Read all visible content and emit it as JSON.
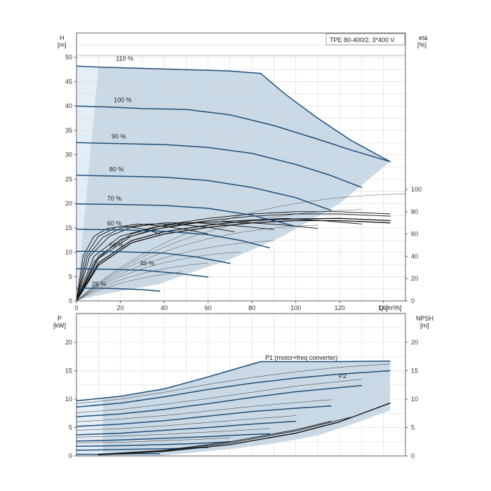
{
  "colors": {
    "curve": "#1f4e79",
    "envelope": "#c9d9e6",
    "envelope_light": "#e4eef7",
    "grid": "#d8d8d8",
    "axis": "#555555",
    "efficiency": "#111111",
    "p2_label": "#2a6aa8"
  },
  "chart_data": [
    {
      "type": "line",
      "title": "TPE 80-400/2, 3*400 V",
      "xlabel": "Q [m³/h]",
      "ylabel_left": [
        "H",
        "[m]"
      ],
      "ylabel_right": [
        "eta",
        "[%]"
      ],
      "xlim": [
        0,
        150
      ],
      "ylim": [
        0,
        55
      ],
      "y2lim": [
        0,
        100
      ],
      "xticks": [
        "0",
        "20",
        "40",
        "60",
        "80",
        "100",
        "120",
        "140"
      ],
      "yticks": [
        "0",
        "5",
        "10",
        "15",
        "20",
        "25",
        "30",
        "35",
        "40",
        "45",
        "50"
      ],
      "y2ticks": [
        "0",
        "20",
        "40",
        "60",
        "80",
        "100"
      ],
      "grid": true,
      "speed_curves": [
        {
          "name": "110 %",
          "x": [
            0,
            10,
            25,
            40,
            55,
            70,
            84,
            95,
            110,
            125,
            143
          ],
          "y": [
            48.2,
            48.0,
            47.8,
            47.6,
            47.4,
            47.2,
            46.7,
            42.5,
            37.5,
            33.0,
            28.6
          ]
        },
        {
          "name": "100 %",
          "x": [
            0,
            15,
            30,
            50,
            70,
            90,
            110,
            125,
            143
          ],
          "y": [
            40.0,
            39.8,
            39.5,
            39.3,
            38.2,
            36.0,
            33.2,
            31.0,
            28.6
          ]
        },
        {
          "name": "90 %",
          "x": [
            0,
            20,
            40,
            60,
            80,
            100,
            115,
            130
          ],
          "y": [
            32.5,
            32.3,
            32.1,
            31.5,
            30.3,
            28.0,
            25.9,
            23.3
          ]
        },
        {
          "name": "80 %",
          "x": [
            0,
            20,
            40,
            60,
            80,
            100,
            116
          ],
          "y": [
            25.8,
            25.6,
            25.4,
            24.7,
            23.3,
            21.2,
            18.6
          ]
        },
        {
          "name": "70 %",
          "x": [
            0,
            20,
            40,
            60,
            80,
            100
          ],
          "y": [
            19.9,
            19.8,
            19.6,
            19.0,
            17.6,
            15.3
          ]
        },
        {
          "name": "60 %",
          "x": [
            0,
            20,
            40,
            60,
            75,
            88
          ],
          "y": [
            14.7,
            14.6,
            14.3,
            13.6,
            12.4,
            10.9
          ]
        },
        {
          "name": "50 %",
          "x": [
            0,
            20,
            40,
            55,
            70
          ],
          "y": [
            10.2,
            10.1,
            9.8,
            9.0,
            7.7
          ]
        },
        {
          "name": "40 %",
          "x": [
            0,
            15,
            30,
            45,
            60
          ],
          "y": [
            6.6,
            6.5,
            6.3,
            5.7,
            4.9
          ]
        },
        {
          "name": "25 %",
          "x": [
            0,
            10,
            20,
            30,
            38
          ],
          "y": [
            2.6,
            2.6,
            2.5,
            2.3,
            2.0
          ]
        }
      ],
      "efficiency_curves": [
        {
          "x": [
            0,
            10,
            25,
            40,
            60,
            80,
            100,
            120,
            143
          ],
          "y": [
            0,
            32,
            52,
            60,
            66,
            70,
            72,
            72,
            70
          ]
        },
        {
          "x": [
            0,
            10,
            25,
            40,
            60,
            80,
            100,
            120,
            143
          ],
          "y": [
            0,
            34,
            54,
            62,
            68,
            72,
            73.5,
            74,
            72
          ]
        },
        {
          "x": [
            0,
            10,
            25,
            40,
            60,
            80,
            100,
            120,
            143
          ],
          "y": [
            0,
            38,
            58,
            66,
            72,
            76,
            78,
            78,
            76
          ]
        },
        {
          "x": [
            0,
            10,
            25,
            40,
            60,
            80,
            100,
            120,
            143
          ],
          "y": [
            0,
            40,
            60,
            68,
            74,
            78,
            80,
            80,
            78
          ]
        },
        {
          "x": [
            0,
            8,
            20,
            35,
            55,
            75,
            95,
            112,
            130
          ],
          "y": [
            0,
            35,
            55,
            64,
            70,
            72,
            74,
            72,
            69
          ]
        },
        {
          "x": [
            0,
            8,
            20,
            35,
            50,
            65,
            80,
            95,
            110
          ],
          "y": [
            0,
            40,
            58,
            66,
            70,
            71,
            70,
            68,
            65
          ]
        },
        {
          "x": [
            0,
            6,
            15,
            25,
            40,
            55,
            70,
            90
          ],
          "y": [
            0,
            40,
            58,
            66,
            70,
            70,
            68,
            64
          ]
        },
        {
          "x": [
            0,
            5,
            12,
            20,
            32,
            45,
            60,
            72
          ],
          "y": [
            0,
            40,
            57,
            65,
            69,
            69,
            66,
            62
          ]
        },
        {
          "x": [
            0,
            4,
            10,
            18,
            28,
            40,
            50,
            60
          ],
          "y": [
            0,
            40,
            58,
            66,
            69,
            67,
            64,
            60
          ]
        },
        {
          "x": [
            0,
            3,
            8,
            14,
            22,
            32,
            38
          ],
          "y": [
            0,
            40,
            58,
            65,
            67,
            64,
            60
          ]
        }
      ],
      "speed_labels": [
        "110 %",
        "100 %",
        "90 %",
        "80 %",
        "70 %",
        "60 %",
        "50 %",
        "40 %",
        "25 %"
      ]
    },
    {
      "type": "line",
      "xlim": [
        0,
        150
      ],
      "ylim": [
        0,
        20
      ],
      "ylabel_left": [
        "P",
        "[kW]"
      ],
      "ylabel_right": [
        "NPSH",
        "[m]"
      ],
      "yticks": [
        "0",
        "5",
        "10",
        "15",
        "20"
      ],
      "y2ticks": [
        "0",
        "5",
        "10",
        "15",
        "20"
      ],
      "grid": true,
      "annotations": [
        "P1 (motor+freq converter)",
        "P2"
      ],
      "p1_envelope": {
        "x": [
          0,
          20,
          40,
          60,
          84,
          100,
          120,
          143
        ],
        "y": [
          9.7,
          10.5,
          11.8,
          13.9,
          16.6,
          16.6,
          16.6,
          16.7
        ]
      },
      "p2_curves": [
        {
          "x": [
            0,
            20,
            40,
            60,
            80,
            100,
            120,
            143
          ],
          "y": [
            8.6,
            9.3,
            10.4,
            11.7,
            12.8,
            13.7,
            14.4,
            15.0
          ]
        },
        {
          "x": [
            0,
            20,
            40,
            60,
            80,
            100,
            130
          ],
          "y": [
            6.9,
            7.4,
            8.2,
            9.2,
            10.3,
            11.3,
            12.4
          ]
        },
        {
          "x": [
            0,
            20,
            40,
            60,
            80,
            100,
            116
          ],
          "y": [
            5.2,
            5.6,
            6.2,
            7.0,
            7.8,
            8.4,
            8.8
          ]
        },
        {
          "x": [
            0,
            20,
            40,
            60,
            80,
            100
          ],
          "y": [
            3.7,
            4.0,
            4.5,
            5.0,
            5.6,
            6.1
          ]
        },
        {
          "x": [
            0,
            20,
            40,
            60,
            75,
            88
          ],
          "y": [
            2.6,
            2.8,
            3.1,
            3.4,
            3.7,
            3.9
          ]
        },
        {
          "x": [
            0,
            20,
            40,
            55,
            70
          ],
          "y": [
            1.7,
            1.8,
            2.0,
            2.2,
            2.5
          ]
        },
        {
          "x": [
            0,
            15,
            30,
            45,
            60
          ],
          "y": [
            1.0,
            1.1,
            1.2,
            1.3,
            1.5
          ]
        },
        {
          "x": [
            0,
            10,
            20,
            30,
            38
          ],
          "y": [
            0.3,
            0.3,
            0.35,
            0.4,
            0.4
          ]
        }
      ],
      "p1_curves": [
        {
          "x": [
            0,
            20,
            40,
            60,
            80,
            100,
            120,
            143
          ],
          "y": [
            9.2,
            10.0,
            11.2,
            12.6,
            13.8,
            14.8,
            15.6,
            16.2
          ]
        },
        {
          "x": [
            0,
            20,
            40,
            60,
            80,
            100,
            130
          ],
          "y": [
            7.6,
            8.2,
            9.1,
            10.1,
            11.2,
            12.3,
            13.5
          ]
        },
        {
          "x": [
            0,
            20,
            40,
            60,
            80,
            100,
            116
          ],
          "y": [
            6.0,
            6.5,
            7.1,
            7.9,
            8.7,
            9.4,
            9.9
          ]
        },
        {
          "x": [
            0,
            20,
            40,
            60,
            80,
            100
          ],
          "y": [
            4.5,
            4.8,
            5.3,
            5.9,
            6.5,
            7.1
          ]
        },
        {
          "x": [
            0,
            20,
            40,
            60,
            75,
            88
          ],
          "y": [
            3.3,
            3.5,
            3.8,
            4.2,
            4.5,
            4.8
          ]
        },
        {
          "x": [
            0,
            20,
            40,
            55,
            70
          ],
          "y": [
            2.3,
            2.4,
            2.7,
            2.9,
            3.2
          ]
        }
      ],
      "npsh_curves": [
        {
          "x": [
            10,
            40,
            70,
            100,
            120,
            143
          ],
          "y": [
            0.2,
            0.8,
            2.0,
            4.0,
            6.0,
            9.3
          ]
        },
        {
          "x": [
            10,
            40,
            70,
            100,
            125
          ],
          "y": [
            0.2,
            0.9,
            2.3,
            4.4,
            6.8
          ]
        },
        {
          "x": [
            10,
            40,
            70,
            100,
            116
          ],
          "y": [
            0.3,
            1.0,
            2.5,
            4.6,
            6.1
          ]
        }
      ]
    }
  ]
}
